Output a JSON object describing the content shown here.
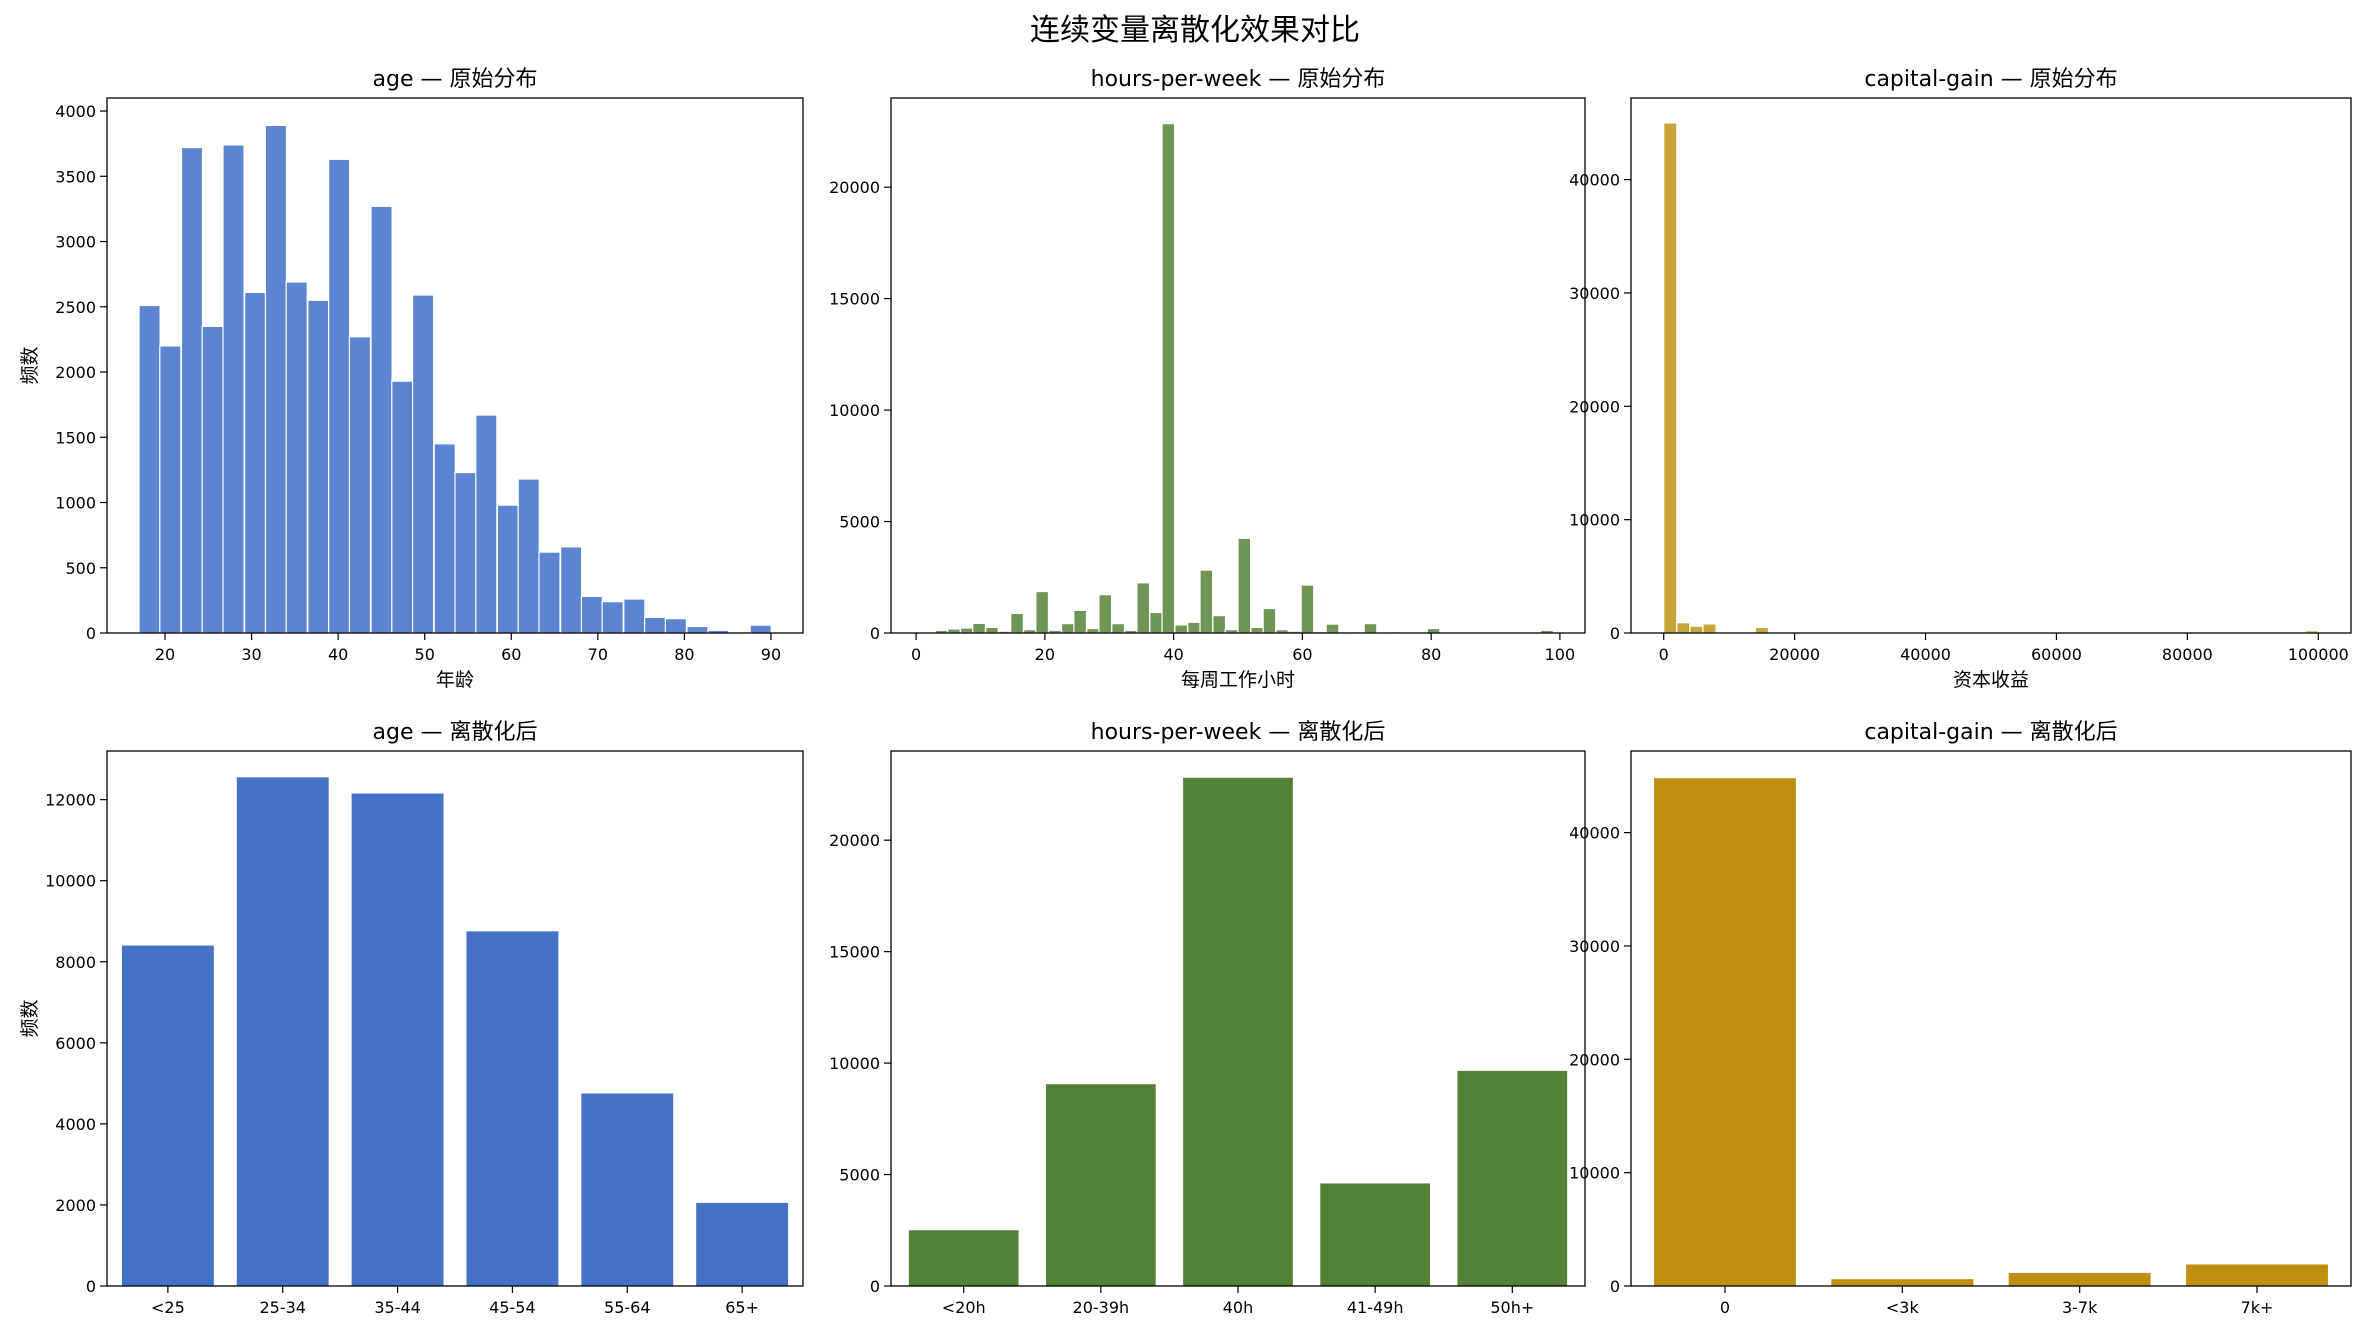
{
  "figure": {
    "title": "连续变量离散化效果对比"
  },
  "chart_data": [
    {
      "type": "bar",
      "subtype": "histogram",
      "title": "age — 原始分布",
      "xlabel": "年龄",
      "ylabel": "频数",
      "color": "#5b84d1",
      "xlim": [
        13.3,
        93.7
      ],
      "ylim": [
        0,
        4100
      ],
      "xticks": [
        20,
        30,
        40,
        50,
        60,
        70,
        80,
        90
      ],
      "yticks": [
        0,
        500,
        1000,
        1500,
        2000,
        2500,
        3000,
        3500,
        4000
      ],
      "bin_width": 2.43,
      "bins": [
        {
          "x0": 17.0,
          "y": 2510
        },
        {
          "x0": 19.4,
          "y": 2200
        },
        {
          "x0": 21.9,
          "y": 3720
        },
        {
          "x0": 24.3,
          "y": 2350
        },
        {
          "x0": 26.7,
          "y": 3740
        },
        {
          "x0": 29.2,
          "y": 2610
        },
        {
          "x0": 31.6,
          "y": 3890
        },
        {
          "x0": 34.0,
          "y": 2690
        },
        {
          "x0": 36.5,
          "y": 2550
        },
        {
          "x0": 38.9,
          "y": 3630
        },
        {
          "x0": 41.3,
          "y": 2270
        },
        {
          "x0": 43.8,
          "y": 3270
        },
        {
          "x0": 46.2,
          "y": 1930
        },
        {
          "x0": 48.6,
          "y": 2590
        },
        {
          "x0": 51.1,
          "y": 1450
        },
        {
          "x0": 53.5,
          "y": 1230
        },
        {
          "x0": 55.9,
          "y": 1670
        },
        {
          "x0": 58.4,
          "y": 980
        },
        {
          "x0": 60.8,
          "y": 1180
        },
        {
          "x0": 63.2,
          "y": 620
        },
        {
          "x0": 65.7,
          "y": 660
        },
        {
          "x0": 68.1,
          "y": 280
        },
        {
          "x0": 70.5,
          "y": 240
        },
        {
          "x0": 73.0,
          "y": 260
        },
        {
          "x0": 75.4,
          "y": 120
        },
        {
          "x0": 77.8,
          "y": 110
        },
        {
          "x0": 80.3,
          "y": 50
        },
        {
          "x0": 82.7,
          "y": 20
        },
        {
          "x0": 85.1,
          "y": 10
        },
        {
          "x0": 87.6,
          "y": 60
        }
      ]
    },
    {
      "type": "bar",
      "subtype": "histogram",
      "title": "hours-per-week — 原始分布",
      "xlabel": "每周工作小时",
      "ylabel": "",
      "color": "#6f9656",
      "xlim": [
        -3.9,
        103.9
      ],
      "ylim": [
        0,
        24000
      ],
      "xticks": [
        0,
        20,
        40,
        60,
        80,
        100
      ],
      "yticks": [
        0,
        5000,
        10000,
        15000,
        20000
      ],
      "bin_width": 1.96,
      "bins": [
        {
          "x0": 1.0,
          "y": 30
        },
        {
          "x0": 3.0,
          "y": 120
        },
        {
          "x0": 4.9,
          "y": 180
        },
        {
          "x0": 6.9,
          "y": 220
        },
        {
          "x0": 8.8,
          "y": 430
        },
        {
          "x0": 10.8,
          "y": 250
        },
        {
          "x0": 12.8,
          "y": 80
        },
        {
          "x0": 14.7,
          "y": 880
        },
        {
          "x0": 16.7,
          "y": 150
        },
        {
          "x0": 18.6,
          "y": 1860
        },
        {
          "x0": 20.6,
          "y": 120
        },
        {
          "x0": 22.6,
          "y": 420
        },
        {
          "x0": 24.5,
          "y": 1020
        },
        {
          "x0": 26.5,
          "y": 200
        },
        {
          "x0": 28.4,
          "y": 1720
        },
        {
          "x0": 30.4,
          "y": 420
        },
        {
          "x0": 32.4,
          "y": 120
        },
        {
          "x0": 34.3,
          "y": 2250
        },
        {
          "x0": 36.3,
          "y": 920
        },
        {
          "x0": 38.2,
          "y": 22850
        },
        {
          "x0": 40.2,
          "y": 360
        },
        {
          "x0": 42.2,
          "y": 480
        },
        {
          "x0": 44.1,
          "y": 2820
        },
        {
          "x0": 46.1,
          "y": 780
        },
        {
          "x0": 48.0,
          "y": 150
        },
        {
          "x0": 50.0,
          "y": 4250
        },
        {
          "x0": 52.0,
          "y": 250
        },
        {
          "x0": 53.9,
          "y": 1100
        },
        {
          "x0": 55.9,
          "y": 150
        },
        {
          "x0": 57.8,
          "y": 80
        },
        {
          "x0": 59.8,
          "y": 2150
        },
        {
          "x0": 61.8,
          "y": 60
        },
        {
          "x0": 63.7,
          "y": 400
        },
        {
          "x0": 65.7,
          "y": 60
        },
        {
          "x0": 67.6,
          "y": 60
        },
        {
          "x0": 69.6,
          "y": 420
        },
        {
          "x0": 71.6,
          "y": 50
        },
        {
          "x0": 73.5,
          "y": 60
        },
        {
          "x0": 75.5,
          "y": 30
        },
        {
          "x0": 77.4,
          "y": 30
        },
        {
          "x0": 79.4,
          "y": 200
        },
        {
          "x0": 81.4,
          "y": 20
        },
        {
          "x0": 83.3,
          "y": 30
        },
        {
          "x0": 85.3,
          "y": 20
        },
        {
          "x0": 87.2,
          "y": 20
        },
        {
          "x0": 89.2,
          "y": 20
        },
        {
          "x0": 91.2,
          "y": 20
        },
        {
          "x0": 93.1,
          "y": 20
        },
        {
          "x0": 95.1,
          "y": 20
        },
        {
          "x0": 97.0,
          "y": 120
        }
      ]
    },
    {
      "type": "bar",
      "subtype": "histogram",
      "title": "capital-gain — 原始分布",
      "xlabel": "资本收益",
      "ylabel": "",
      "color": "#c9a43a",
      "xlim": [
        -5000,
        105000
      ],
      "ylim": [
        0,
        47200
      ],
      "xticks": [
        0,
        20000,
        40000,
        60000,
        80000,
        100000
      ],
      "yticks": [
        0,
        10000,
        20000,
        30000,
        40000
      ],
      "bin_width": 2000,
      "bins": [
        {
          "x0": 0,
          "y": 45000
        },
        {
          "x0": 2000,
          "y": 900
        },
        {
          "x0": 4000,
          "y": 600
        },
        {
          "x0": 6000,
          "y": 800
        },
        {
          "x0": 8000,
          "y": 50
        },
        {
          "x0": 10000,
          "y": 50
        },
        {
          "x0": 12000,
          "y": 50
        },
        {
          "x0": 14000,
          "y": 500
        },
        {
          "x0": 98000,
          "y": 200
        }
      ]
    },
    {
      "type": "bar",
      "title": "age — 离散化后",
      "xlabel": "",
      "ylabel": "频数",
      "color": "#4472c4",
      "categories": [
        "<25",
        "25-34",
        "35-44",
        "45-54",
        "55-64",
        "65+"
      ],
      "values": [
        8400,
        12550,
        12150,
        8750,
        4750,
        2050
      ],
      "ylim": [
        0,
        13200
      ],
      "yticks": [
        0,
        2000,
        4000,
        6000,
        8000,
        10000,
        12000
      ]
    },
    {
      "type": "bar",
      "title": "hours-per-week — 离散化后",
      "xlabel": "",
      "ylabel": "",
      "color": "#538135",
      "categories": [
        "<20h",
        "20-39h",
        "40h",
        "41-49h",
        "50h+"
      ],
      "values": [
        2500,
        9050,
        22800,
        4600,
        9650
      ],
      "ylim": [
        0,
        24000
      ],
      "yticks": [
        0,
        5000,
        10000,
        15000,
        20000
      ]
    },
    {
      "type": "bar",
      "title": "capital-gain — 离散化后",
      "xlabel": "",
      "ylabel": "",
      "color": "#bf8f0f",
      "categories": [
        "0",
        "<3k",
        "3-7k",
        "7k+"
      ],
      "values": [
        44800,
        600,
        1150,
        1900
      ],
      "ylim": [
        0,
        47200
      ],
      "yticks": [
        0,
        10000,
        20000,
        30000,
        40000
      ]
    }
  ]
}
